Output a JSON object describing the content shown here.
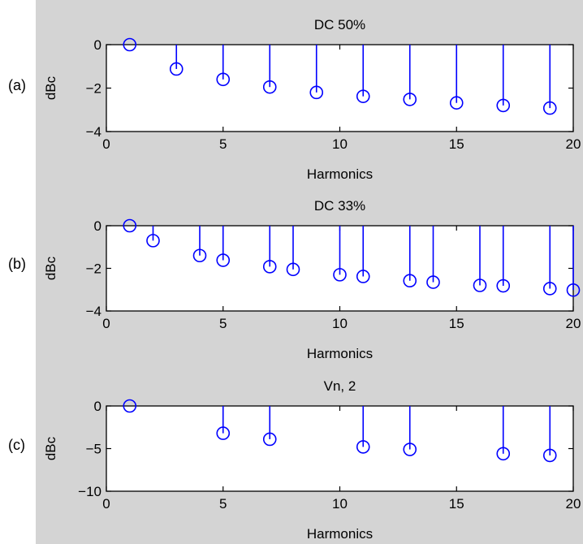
{
  "panel_tags": [
    "(a)",
    "(b)",
    "(c)"
  ],
  "chart_data": [
    {
      "type": "stem",
      "title": "DC 50%",
      "xlabel": "Harmonics",
      "ylabel": "dBc",
      "xlim": [
        0,
        20
      ],
      "ylim": [
        -4,
        0
      ],
      "xticks": [
        0,
        5,
        10,
        15,
        20
      ],
      "yticks": [
        0,
        -2,
        -4
      ],
      "ytick_labels": [
        "0",
        "−2",
        "−4"
      ],
      "grid": false,
      "color": "#0000ff",
      "x": [
        1,
        3,
        5,
        7,
        9,
        11,
        13,
        15,
        17,
        19
      ],
      "y": [
        0,
        -1.12,
        -1.6,
        -1.95,
        -2.2,
        -2.38,
        -2.52,
        -2.68,
        -2.8,
        -2.92
      ]
    },
    {
      "type": "stem",
      "title": "DC 33%",
      "xlabel": "Harmonics",
      "ylabel": "dBc",
      "xlim": [
        0,
        20
      ],
      "ylim": [
        -4,
        0
      ],
      "xticks": [
        0,
        5,
        10,
        15,
        20
      ],
      "yticks": [
        0,
        -2,
        -4
      ],
      "ytick_labels": [
        "0",
        "−2",
        "−4"
      ],
      "grid": false,
      "color": "#0000ff",
      "x": [
        1,
        2,
        4,
        5,
        7,
        8,
        10,
        11,
        13,
        14,
        16,
        17,
        19,
        20
      ],
      "y": [
        0,
        -0.7,
        -1.4,
        -1.62,
        -1.92,
        -2.05,
        -2.3,
        -2.38,
        -2.58,
        -2.65,
        -2.8,
        -2.82,
        -2.95,
        -3.02
      ]
    },
    {
      "type": "stem",
      "title": "Vn, 2",
      "xlabel": "Harmonics",
      "ylabel": "dBc",
      "xlim": [
        0,
        20
      ],
      "ylim": [
        -10,
        0
      ],
      "xticks": [
        0,
        5,
        10,
        15,
        20
      ],
      "yticks": [
        0,
        -5,
        -10
      ],
      "ytick_labels": [
        "0",
        "−5",
        "−10"
      ],
      "grid": false,
      "color": "#0000ff",
      "x": [
        1,
        5,
        7,
        11,
        13,
        17,
        19
      ],
      "y": [
        0,
        -3.2,
        -3.9,
        -4.8,
        -5.1,
        -5.6,
        -5.8
      ]
    }
  ]
}
